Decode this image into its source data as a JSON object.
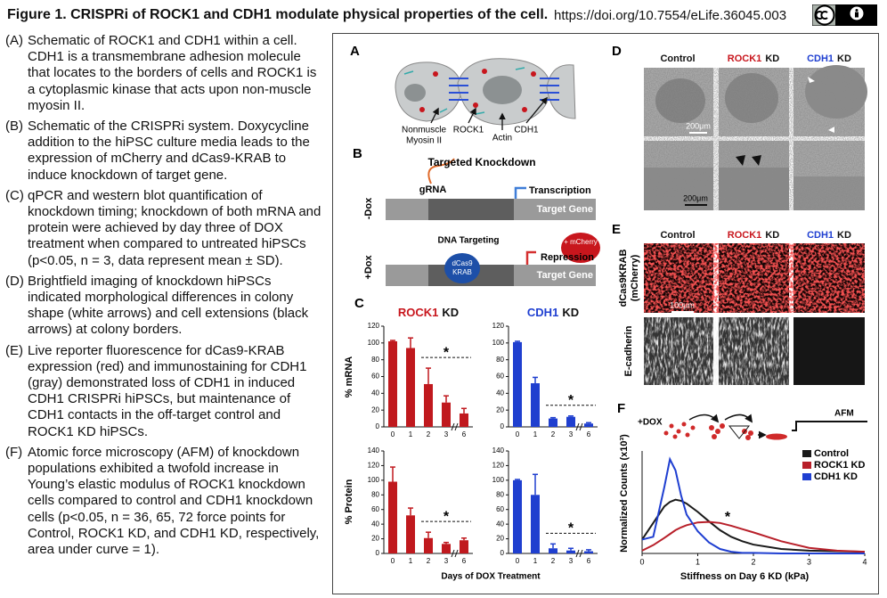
{
  "header": {
    "title": "Figure 1. CRISPRi of ROCK1 and CDH1 modulate physical properties of the cell.",
    "doi": "https://doi.org/10.7554/eLife.36045.003"
  },
  "legend": [
    {
      "label": "(A)",
      "text": "Schematic of ROCK1 and CDH1 within a cell. CDH1 is a transmembrane adhesion molecule that locates to the borders of cells and ROCK1 is a cytoplasmic kinase that acts upon non-muscle myosin II."
    },
    {
      "label": "(B)",
      "text": "Schematic of the CRISPRi system. Doxycycline addition to the hiPSC culture media leads to the expression of mCherry and dCas9-KRAB to induce knockdown of target gene."
    },
    {
      "label": "(C)",
      "text": "qPCR and western blot quantification of knockdown timing; knockdown of both mRNA and protein were achieved by day three of DOX treatment when compared to untreated hiPSCs (p<0.05, n = 3, data represent mean ± SD)."
    },
    {
      "label": "(D)",
      "text": "Brightfield imaging of knockdown hiPSCs indicated morphological differences in colony shape (white arrows) and cell extensions (black arrows) at colony borders."
    },
    {
      "label": "(E)",
      "text": "Live reporter fluorescence for dCas9-KRAB expression (red) and immunostaining for CDH1 (gray) demonstrated loss of CDH1 in induced CDH1 CRISPRi hiPSCs, but maintenance of CDH1 contacts in the off-target control and ROCK1 KD hiPSCs."
    },
    {
      "label": "(F)",
      "text": "Atomic force microscopy (AFM) of knockdown populations exhibited a twofold increase in Young’s elastic modulus of ROCK1 knockdown cells compared to control and CDH1 knockdown cells (p<0.05, n = 36, 65, 72 force points for Control, ROCK1 KD, and CDH1 KD, respectively, area under curve = 1)."
    }
  ],
  "figure": {
    "conditions": [
      {
        "gene": "Control"
      },
      {
        "gene": "ROCK1",
        "suffix": "KD",
        "color": "#c8161d"
      },
      {
        "gene": "CDH1",
        "suffix": "KD",
        "color": "#1f3fd1"
      }
    ],
    "panel_a": {
      "letter": "A",
      "myosin_label": [
        "Nonmuscle",
        "Myosin II"
      ],
      "labels": [
        "ROCK1",
        "Actin",
        "CDH1"
      ]
    },
    "panel_b": {
      "letter": "B",
      "title": "Targeted Knockdown",
      "grna": "gRNA",
      "transcription": "Transcription",
      "target_gene": "Target Gene",
      "minus_dox": "-Dox",
      "plus_dox": "+Dox",
      "dna_targeting": "DNA Targeting",
      "dcas9": [
        "dCas9",
        "KRAB"
      ],
      "mcherry": "+ mCherry",
      "repression": "Repression"
    },
    "panel_c": {
      "letter": "C",
      "y_labels": [
        "% mRNA",
        "% Protein"
      ],
      "x_label": "Days of DOX Treatment",
      "categories": [
        "0",
        "1",
        "2",
        "3",
        "6"
      ],
      "charts": [
        {
          "type": "bar",
          "color": "#c0191e",
          "values": [
            102,
            94,
            51,
            29,
            16
          ],
          "errors": [
            1,
            12,
            19,
            8,
            6
          ],
          "ylim": [
            0,
            120
          ],
          "yticks": [
            0,
            20,
            40,
            60,
            80,
            100,
            120
          ],
          "annotation": "*"
        },
        {
          "type": "bar",
          "color": "#1f3fcf",
          "values": [
            101,
            52,
            10,
            12,
            4
          ],
          "errors": [
            1,
            7,
            1,
            1,
            1
          ],
          "ylim": [
            0,
            120
          ],
          "yticks": [
            0,
            20,
            40,
            60,
            80,
            100,
            120
          ],
          "annotation": "*"
        },
        {
          "type": "bar",
          "color": "#c0191e",
          "values": [
            98,
            52,
            21,
            13,
            18
          ],
          "errors": [
            20,
            10,
            8,
            2,
            3
          ],
          "ylim": [
            0,
            140
          ],
          "yticks": [
            0,
            20,
            40,
            60,
            80,
            100,
            120,
            140
          ],
          "annotation": "*"
        },
        {
          "type": "bar",
          "color": "#1f3fcf",
          "values": [
            100,
            80,
            7,
            4,
            3
          ],
          "errors": [
            1,
            28,
            6,
            3,
            2
          ],
          "ylim": [
            0,
            140
          ],
          "yticks": [
            0,
            20,
            40,
            60,
            80,
            100,
            120,
            140
          ],
          "annotation": "*"
        }
      ]
    },
    "panel_d": {
      "letter": "D",
      "scale_bars": [
        "200μm",
        "200μm"
      ]
    },
    "panel_e": {
      "letter": "E",
      "row_labels": [
        [
          "dCas9KRAB",
          "(mCherry)"
        ],
        [
          "E-cadherin"
        ]
      ],
      "scale_bar": "100μm"
    },
    "panel_f": {
      "letter": "F",
      "dox": "+DOX",
      "afm": "AFM",
      "annotation": "*",
      "chart": {
        "type": "line",
        "x_label": "Stiffness on Day 6 KD (kPa)",
        "y_label": "Normalized Counts (x10³)",
        "x": [
          0,
          0.2,
          0.4,
          0.5,
          0.6,
          0.7,
          0.8,
          1,
          1.2,
          1.4,
          1.6,
          1.8,
          2,
          2.5,
          3,
          3.5,
          4
        ],
        "xlim": [
          0,
          4
        ],
        "xticks": [
          0,
          1,
          2,
          3,
          4
        ],
        "ylim": [
          0,
          1.85
        ],
        "series": [
          {
            "name": "Control",
            "color": "#1a1a1a",
            "values": [
              0.25,
              0.55,
              0.85,
              0.93,
              0.97,
              0.95,
              0.9,
              0.75,
              0.58,
              0.42,
              0.3,
              0.22,
              0.16,
              0.08,
              0.05,
              0.04,
              0.03
            ]
          },
          {
            "name": "ROCK1 KD",
            "color": "#b8202a",
            "values": [
              0.05,
              0.15,
              0.28,
              0.35,
              0.42,
              0.47,
              0.51,
              0.56,
              0.57,
              0.55,
              0.5,
              0.44,
              0.38,
              0.22,
              0.1,
              0.05,
              0.03
            ]
          },
          {
            "name": "CDH1 KD",
            "color": "#1f3fd1",
            "values": [
              0.25,
              0.3,
              1.2,
              1.7,
              1.5,
              1.05,
              0.7,
              0.4,
              0.2,
              0.08,
              0.03,
              0.01,
              0.01,
              0,
              0,
              0,
              0
            ]
          }
        ]
      }
    }
  }
}
